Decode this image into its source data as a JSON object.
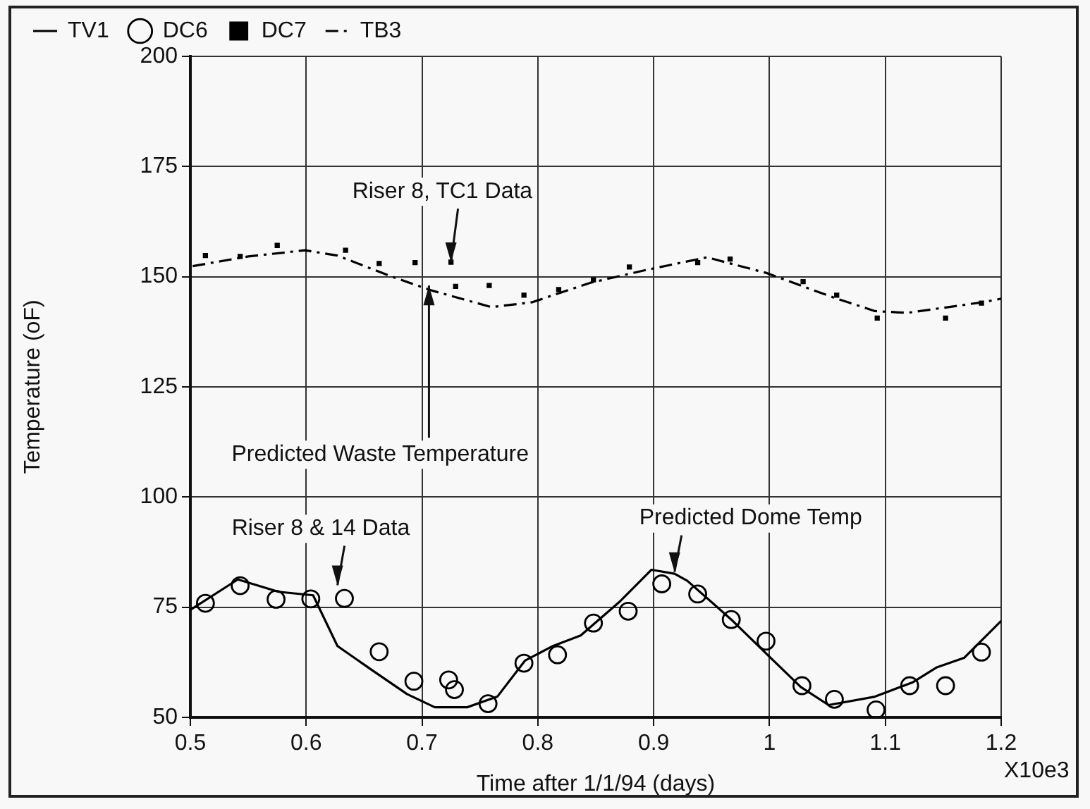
{
  "chart_data": {
    "type": "line",
    "xlabel": "Time after 1/1/94 (days)",
    "ylabel": "Temperature (oF)",
    "xlim": [
      0.5,
      1.2
    ],
    "xticks": [
      0.5,
      0.6,
      0.7,
      0.8,
      0.9,
      1,
      1.1,
      1.2
    ],
    "ylim": [
      50,
      200
    ],
    "yticks": [
      50,
      75,
      100,
      125,
      150,
      175,
      200
    ],
    "grid": true,
    "legend": "top left",
    "annotations": [
      {
        "text": "Riser 8, TC1 Data",
        "x": 0.725,
        "y": 153.3
      },
      {
        "text": "Predicted Waste Temperature",
        "x": 0.706,
        "y": 148
      },
      {
        "text": "Riser 8 & 14 Data",
        "x": 0.627,
        "y": 80
      },
      {
        "text": "Predicted Dome Temp",
        "x": 0.918,
        "y": 83
      },
      "X10e3"
    ],
    "series": [
      {
        "name": "TV1",
        "color": "#000000",
        "line_style": "solid",
        "marker": "none",
        "x": [
          0.5,
          0.541,
          0.576,
          0.606,
          0.627,
          0.657,
          0.687,
          0.711,
          0.739,
          0.765,
          0.789,
          0.813,
          0.837,
          0.87,
          0.898,
          0.918,
          0.929,
          0.967,
          0.999,
          1.027,
          1.051,
          1.091,
          1.124,
          1.144,
          1.168,
          1.2
        ],
        "values": [
          74.4,
          81.3,
          78.5,
          77.7,
          66.2,
          60.7,
          55.3,
          52.3,
          52.3,
          54.7,
          62.9,
          66.2,
          68.6,
          76.1,
          83.5,
          82.6,
          81,
          72.2,
          64,
          56.9,
          52.8,
          54.7,
          58,
          61.3,
          63.5,
          71.9
        ]
      },
      {
        "name": "DC6",
        "type": "scatter",
        "color": "#000000",
        "marker": "circle",
        "x": [
          0.513,
          0.543,
          0.574,
          0.604,
          0.633,
          0.663,
          0.693,
          0.723,
          0.728,
          0.757,
          0.788,
          0.817,
          0.848,
          0.878,
          0.907,
          0.938,
          0.967,
          0.997,
          1.028,
          1.056,
          1.092,
          1.121,
          1.152,
          1.183
        ],
        "values": [
          75.9,
          79.9,
          76.8,
          76.9,
          77,
          64.9,
          58.2,
          58.5,
          56.3,
          53.1,
          62.3,
          64.2,
          71.4,
          74.1,
          80.3,
          78,
          72.2,
          67.3,
          57.2,
          54.1,
          51.7,
          57.2,
          57.2,
          64.8
        ]
      },
      {
        "name": "DC7",
        "type": "scatter",
        "color": "#000000",
        "marker": "square",
        "x": [
          0.513,
          0.543,
          0.575,
          0.634,
          0.663,
          0.694,
          0.725,
          0.729,
          0.758,
          0.788,
          0.818,
          0.848,
          0.879,
          0.938,
          0.966,
          1.029,
          1.058,
          1.093,
          1.152,
          1.183
        ],
        "values": [
          154.8,
          154.6,
          157.1,
          156,
          153,
          153.2,
          153.3,
          147.8,
          148,
          145.8,
          147.1,
          149.3,
          152.2,
          153.2,
          154,
          148.9,
          145.8,
          140.6,
          140.6,
          144
        ]
      },
      {
        "name": "TB3",
        "color": "#000000",
        "line_style": "dashed",
        "marker": "none",
        "x": [
          0.502,
          0.55,
          0.599,
          0.627,
          0.672,
          0.708,
          0.76,
          0.795,
          0.845,
          0.893,
          0.946,
          0.998,
          1.055,
          1.091,
          1.119,
          1.184,
          1.2
        ],
        "values": [
          152.4,
          154.6,
          156,
          154.8,
          150.2,
          146.9,
          143.1,
          144.2,
          148.6,
          151.5,
          154.4,
          150.8,
          145.3,
          142.2,
          141.8,
          144.2,
          145
        ]
      }
    ]
  }
}
